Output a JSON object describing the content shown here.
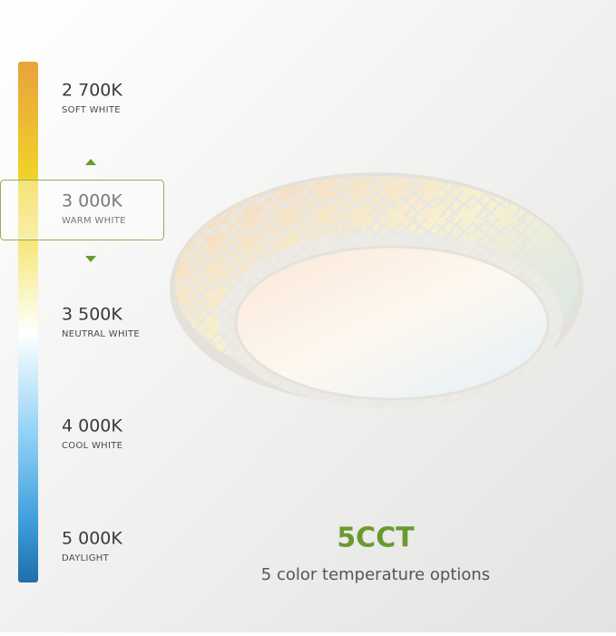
{
  "options": [
    {
      "temperature": "2 700K",
      "name": "SOFT WHITE"
    },
    {
      "temperature": "3 000K",
      "name": "WARM WHITE"
    },
    {
      "temperature": "3 500K",
      "name": "NEUTRAL WHITE"
    },
    {
      "temperature": "4 000K",
      "name": "COOL WHITE"
    },
    {
      "temperature": "5 000K",
      "name": "DAYLIGHT"
    }
  ],
  "headline": "5CCT",
  "subtitle": "5 color temperature options"
}
